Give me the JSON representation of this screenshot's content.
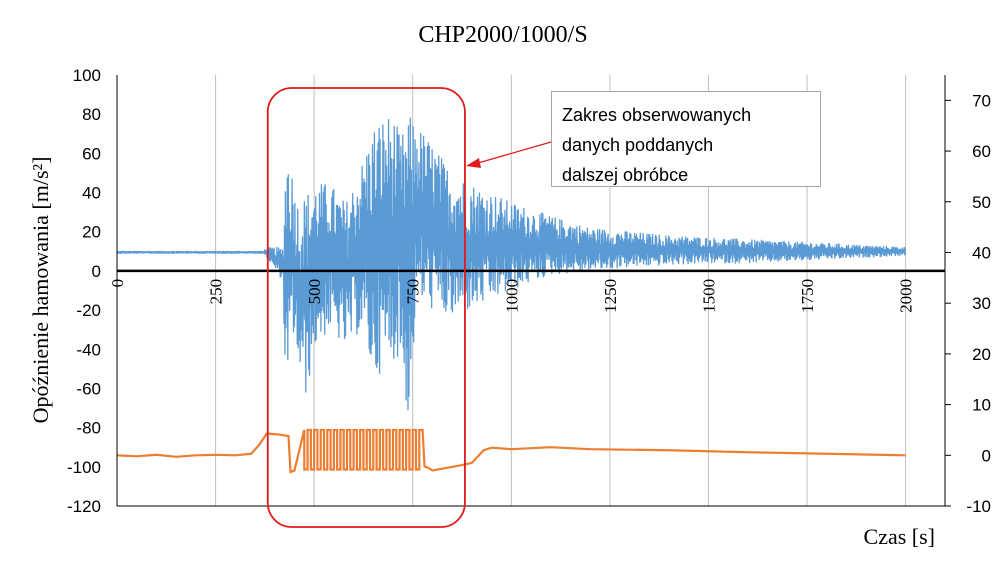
{
  "chart_data": {
    "type": "line",
    "title": "CHP2000/1000/S",
    "xlabel": "Czas [s]",
    "ylabel": "Opóźnienie hamowania [m/s²]",
    "xlim": [
      0,
      2100
    ],
    "ylim": [
      -120,
      100
    ],
    "y2lim": [
      -10,
      75
    ],
    "x_ticks": [
      0,
      250,
      500,
      750,
      1000,
      1250,
      1500,
      1750,
      2000
    ],
    "y_ticks": [
      100,
      80,
      60,
      40,
      20,
      0,
      -20,
      -40,
      -60,
      -80,
      -100,
      -120
    ],
    "y2_ticks": [
      70,
      60,
      50,
      40,
      30,
      20,
      10,
      0,
      -10
    ],
    "grid": "vertical",
    "legend": "none",
    "series": [
      {
        "axis": "left",
        "color": "#5b9bd5",
        "description": "oscillating braking deceleration signal",
        "envelope": {
          "x": [
            0,
            370,
            380,
            420,
            430,
            445,
            460,
            480,
            500,
            540,
            580,
            620,
            650,
            680,
            700,
            720,
            740,
            760,
            800,
            850,
            900,
            950,
            1000,
            1100,
            1200,
            1300,
            1400,
            1500,
            1600,
            1700,
            1800,
            1900,
            2000
          ],
          "upper": [
            10,
            10,
            12,
            12,
            70,
            50,
            35,
            40,
            45,
            45,
            35,
            55,
            75,
            80,
            80,
            68,
            80,
            75,
            65,
            50,
            45,
            40,
            35,
            28,
            22,
            20,
            18,
            17,
            16,
            15,
            14,
            13,
            12
          ],
          "lower": [
            9,
            9,
            7,
            -5,
            -75,
            -30,
            -50,
            -65,
            -40,
            -30,
            -40,
            -30,
            -55,
            -50,
            -45,
            -45,
            -80,
            -15,
            -20,
            -25,
            -20,
            -15,
            -10,
            -2,
            0,
            2,
            3,
            4,
            4,
            5,
            6,
            7,
            8
          ]
        }
      },
      {
        "axis": "right",
        "color": "#ed7d31",
        "description": "secondary signal",
        "x": [
          0,
          50,
          100,
          150,
          200,
          250,
          300,
          340,
          360,
          380,
          410,
          435,
          440,
          450,
          780,
          790,
          800,
          870,
          900,
          930,
          950,
          1000,
          1100,
          1200,
          1400,
          1600,
          1800,
          2000
        ],
        "y": [
          0,
          -0.2,
          0.1,
          -0.3,
          0,
          0.1,
          0,
          0.3,
          2,
          4.3,
          4.1,
          3.8,
          -3.3,
          -3.0,
          -2.2,
          -2.5,
          -3.0,
          -2.0,
          -1.5,
          1.0,
          1.5,
          1.2,
          1.6,
          1.2,
          1.0,
          0.6,
          0.3,
          0.0
        ],
        "rapid_switching": {
          "x_from": 475,
          "x_to": 775,
          "high": 5.0,
          "low": -2.8,
          "count": 36
        }
      }
    ],
    "annotation": {
      "lines": [
        "Zakres obserwowanych",
        "danych poddanych",
        "dalszej obróbce"
      ],
      "highlight_range_x": [
        390,
        890
      ],
      "highlight_color": "#e31a1c"
    }
  }
}
